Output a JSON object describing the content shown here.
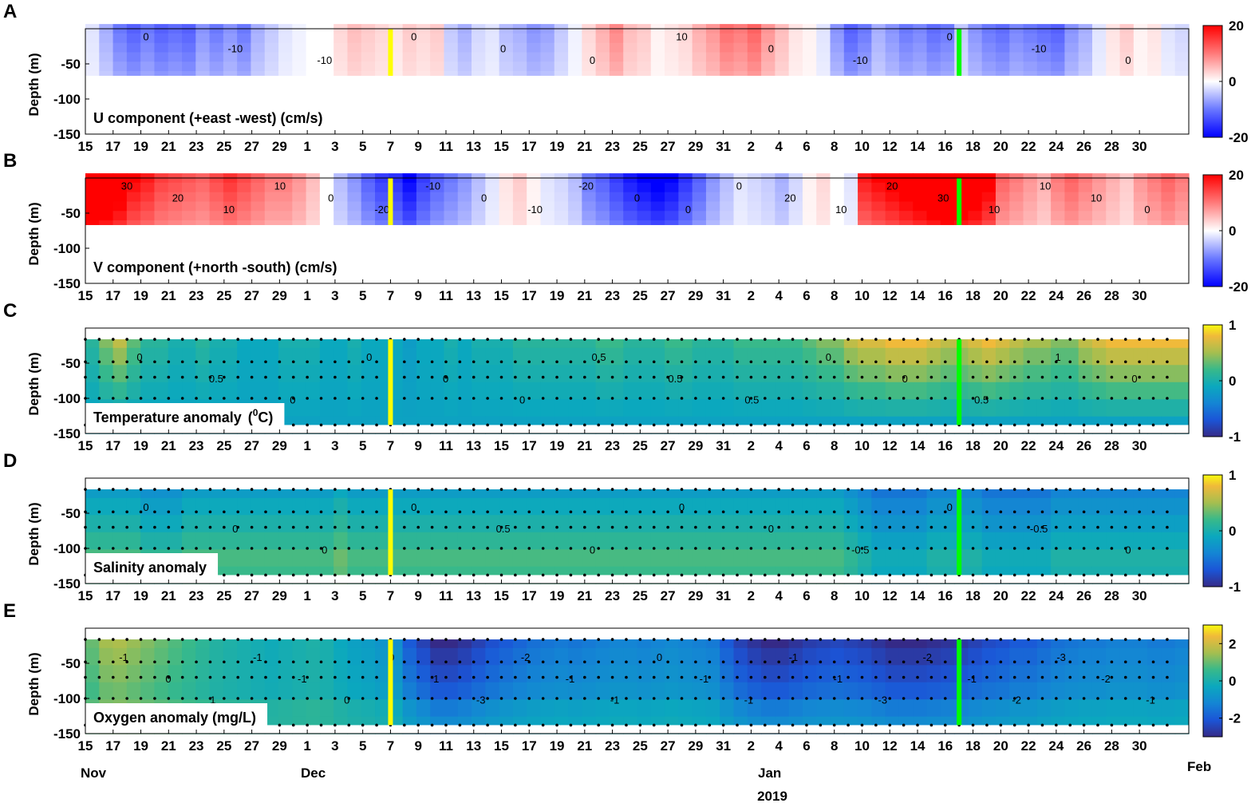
{
  "figure": {
    "year_label": "2019",
    "month_labels": [
      {
        "label": "Nov",
        "day_index": 0
      },
      {
        "label": "Dec",
        "day_index": 16
      },
      {
        "label": "Jan",
        "day_index": 47
      },
      {
        "label": "Feb",
        "day_index": 78
      }
    ],
    "vertical_markers": [
      {
        "name": "yellow-marker",
        "color": "#ffff00",
        "day_index": 22
      },
      {
        "name": "green-marker",
        "color": "#00ff00",
        "day_index": 63
      }
    ],
    "date_ticks": [
      "15",
      "17",
      "19",
      "21",
      "23",
      "25",
      "27",
      "29",
      "1",
      "3",
      "5",
      "7",
      "9",
      "11",
      "13",
      "15",
      "17",
      "19",
      "21",
      "23",
      "25",
      "27",
      "29",
      "31",
      "2",
      "4",
      "6",
      "8",
      "10",
      "12",
      "14",
      "16",
      "18",
      "20",
      "22",
      "24",
      "26",
      "28",
      "30"
    ],
    "depth_ticks": [
      -50,
      -100,
      -150
    ],
    "ylabel": "Depth (m)"
  },
  "chart_data": [
    {
      "panel": "A",
      "type": "heatmap",
      "label": "U component (+east -west) (cm/s)",
      "ylim": [
        -150,
        0
      ],
      "data_depth_range": [
        -67,
        0
      ],
      "colorbar": {
        "min": -20,
        "max": 20,
        "ticks": [
          "20",
          "0",
          "-20"
        ],
        "colormap": "blue-white-red"
      },
      "anomaly_profile": [
        -2,
        -6,
        -10,
        -12,
        -10,
        -12,
        -11,
        -12,
        -8,
        -10,
        -8,
        -10,
        -6,
        -4,
        -2,
        -1,
        0,
        0,
        3,
        5,
        4,
        3,
        2,
        4,
        3,
        4,
        -4,
        -6,
        -3,
        -2,
        -5,
        -6,
        -8,
        -7,
        -4,
        -1,
        3,
        6,
        9,
        5,
        4,
        1,
        2,
        3,
        6,
        8,
        11,
        10,
        12,
        8,
        5,
        2,
        1,
        -2,
        -8,
        -12,
        -10,
        -6,
        -8,
        -10,
        -9,
        -11,
        -10,
        -4,
        -8,
        -10,
        -11,
        -9,
        -10,
        -11,
        -12,
        -8,
        -6,
        -2,
        2,
        4,
        1,
        2,
        -2,
        -3
      ],
      "contour_labels": [
        "0",
        "-10",
        "-10",
        "0",
        "0",
        "0",
        "10",
        "0",
        "-10",
        "0",
        "-10",
        "0"
      ],
      "grid": false
    },
    {
      "panel": "B",
      "type": "heatmap",
      "label": "V component (+north -south) (cm/s)",
      "ylim": [
        -150,
        0
      ],
      "data_depth_range": [
        -67,
        0
      ],
      "colorbar": {
        "min": -20,
        "max": 20,
        "ticks": [
          "20",
          "0",
          "-20"
        ],
        "colormap": "blue-white-red"
      },
      "anomaly_profile": [
        30,
        28,
        25,
        20,
        18,
        15,
        14,
        13,
        12,
        14,
        16,
        14,
        12,
        10,
        10,
        8,
        5,
        0,
        -5,
        -8,
        -12,
        -15,
        -16,
        -20,
        -15,
        -12,
        -10,
        -8,
        -5,
        -2,
        2,
        4,
        1,
        -2,
        -3,
        -5,
        -10,
        -12,
        -15,
        -18,
        -20,
        -22,
        -20,
        -16,
        -12,
        -8,
        -5,
        -2,
        -3,
        -4,
        -6,
        -3,
        1,
        3,
        0,
        -2,
        18,
        20,
        22,
        24,
        26,
        28,
        30,
        28,
        26,
        22,
        12,
        10,
        8,
        6,
        10,
        12,
        10,
        8,
        6,
        4,
        8,
        10,
        12,
        10
      ],
      "contour_labels": [
        "30",
        "20",
        "10",
        "10",
        "0",
        "-20",
        "-10",
        "0",
        "-10",
        "-20",
        "0",
        "0",
        "0",
        "20",
        "10",
        "20",
        "30",
        "10",
        "10",
        "10",
        "0"
      ],
      "grid": false
    },
    {
      "panel": "C",
      "type": "heatmap",
      "label": "Temperature anomaly",
      "label_unit": "C",
      "label_superscript": "0",
      "ylim": [
        -150,
        0
      ],
      "data_depth_range": [
        -138,
        -16
      ],
      "sample_depths": [
        -16,
        -48,
        -70,
        -100,
        -138
      ],
      "colorbar": {
        "min": -1,
        "max": 1,
        "ticks": [
          "1",
          "0",
          "-1"
        ],
        "colormap": "parula"
      },
      "anomaly_profile": [
        0.1,
        0.4,
        0.6,
        0.3,
        0.1,
        0.1,
        0.0,
        0.0,
        0.1,
        0.0,
        0.0,
        -0.1,
        -0.1,
        -0.1,
        0.0,
        0.0,
        0.0,
        -0.1,
        -0.1,
        0.0,
        -0.1,
        -0.1,
        -0.1,
        -0.2,
        -0.1,
        -0.1,
        0.0,
        -0.1,
        0.0,
        0.0,
        0.0,
        0.1,
        0.1,
        0.1,
        0.1,
        0.1,
        0.1,
        0.2,
        0.2,
        0.1,
        0.1,
        0.1,
        0.2,
        0.2,
        0.1,
        0.1,
        0.1,
        0.2,
        0.2,
        0.2,
        0.2,
        0.2,
        0.3,
        0.4,
        0.4,
        0.6,
        0.7,
        0.7,
        0.8,
        0.8,
        0.8,
        0.7,
        0.6,
        0.6,
        0.7,
        0.8,
        0.7,
        0.6,
        0.5,
        0.5,
        0.4,
        0.4,
        0.6,
        0.7,
        0.8,
        0.8,
        0.8,
        0.8,
        0.8,
        0.8
      ],
      "contour_labels": [
        "0",
        "0.5",
        "0",
        "0",
        "0",
        "0",
        "0.5",
        "0.5",
        "0.5",
        "0",
        "0",
        "0.5",
        "1",
        "0"
      ],
      "grid": false
    },
    {
      "panel": "D",
      "type": "heatmap",
      "label": "Salinity anomaly",
      "ylim": [
        -150,
        0
      ],
      "data_depth_range": [
        -138,
        -16
      ],
      "sample_depths": [
        -16,
        -48,
        -70,
        -100,
        -138
      ],
      "colorbar": {
        "min": -1,
        "max": 1,
        "ticks": [
          "1",
          "0",
          "-1"
        ],
        "colormap": "parula"
      },
      "anomaly_profile": [
        -0.2,
        -0.2,
        -0.2,
        -0.2,
        -0.3,
        -0.3,
        -0.3,
        -0.2,
        -0.2,
        -0.2,
        -0.2,
        -0.2,
        -0.2,
        -0.2,
        -0.2,
        -0.2,
        -0.2,
        -0.2,
        -0.1,
        -0.2,
        -0.2,
        -0.2,
        -0.2,
        -0.2,
        -0.2,
        -0.2,
        -0.2,
        -0.2,
        -0.2,
        -0.2,
        -0.2,
        -0.2,
        -0.2,
        -0.2,
        -0.2,
        -0.2,
        -0.2,
        -0.2,
        -0.2,
        -0.2,
        -0.2,
        -0.2,
        -0.2,
        -0.2,
        -0.2,
        -0.2,
        -0.2,
        -0.2,
        -0.2,
        -0.2,
        -0.2,
        -0.2,
        -0.2,
        -0.2,
        -0.2,
        -0.3,
        -0.4,
        -0.5,
        -0.5,
        -0.5,
        -0.5,
        -0.4,
        -0.4,
        -0.4,
        -0.4,
        -0.5,
        -0.5,
        -0.5,
        -0.5,
        -0.5,
        -0.4,
        -0.4,
        -0.4,
        -0.4,
        -0.4,
        -0.4,
        -0.4,
        -0.4,
        -0.4,
        -0.4
      ],
      "contour_labels": [
        "0",
        "0",
        "0",
        "0",
        "0.5",
        "0",
        "0",
        "0",
        "-0.5",
        "0",
        "-0.5",
        "0"
      ],
      "grid": false
    },
    {
      "panel": "E",
      "type": "heatmap",
      "label": "Oxygen anomaly  (mg/L)",
      "ylim": [
        -150,
        0
      ],
      "data_depth_range": [
        -138,
        -16
      ],
      "sample_depths": [
        -16,
        -48,
        -70,
        -100,
        -138
      ],
      "colorbar": {
        "min": -3,
        "max": 3,
        "ticks": [
          "2",
          "0",
          "-2"
        ],
        "colormap": "parula"
      },
      "anomaly_profile": [
        1,
        1.5,
        1.6,
        1.4,
        1.2,
        1,
        0.8,
        0.6,
        0.4,
        0.2,
        0.1,
        0,
        -0.1,
        -0.2,
        -0.1,
        0,
        0.1,
        0,
        -0.3,
        -0.5,
        -0.6,
        -0.8,
        -1,
        -2,
        -2.5,
        -3,
        -3,
        -2.8,
        -2.5,
        -2.2,
        -2,
        -1.8,
        -1.6,
        -1.5,
        -1.4,
        -1.5,
        -1.4,
        -1.3,
        -1.2,
        -1.2,
        -1.3,
        -1.2,
        -1.1,
        -1.2,
        -1.3,
        -1.4,
        -2,
        -2.5,
        -2.8,
        -3,
        -3,
        -2.8,
        -2.6,
        -2.5,
        -2.4,
        -2.5,
        -2.6,
        -2.8,
        -3,
        -3,
        -3,
        -2.9,
        -2.8,
        -2.7,
        -2.5,
        -2.3,
        -2.2,
        -2,
        -2,
        -1.8,
        -1.6,
        -1.5,
        -1.4,
        -1.4,
        -1.3,
        -1.3,
        -1.3,
        -1.4,
        -1.4,
        -1.3
      ],
      "contour_labels": [
        "-1",
        "0",
        "1",
        "-1",
        "-1",
        "0",
        "0",
        "1",
        "-3",
        "-2",
        "-1",
        "-1",
        "0",
        "-1",
        "-1",
        "-1",
        "-1",
        "-3",
        "-2",
        "-1",
        "-2",
        "-3",
        "-2",
        "-1"
      ],
      "grid": false
    }
  ]
}
